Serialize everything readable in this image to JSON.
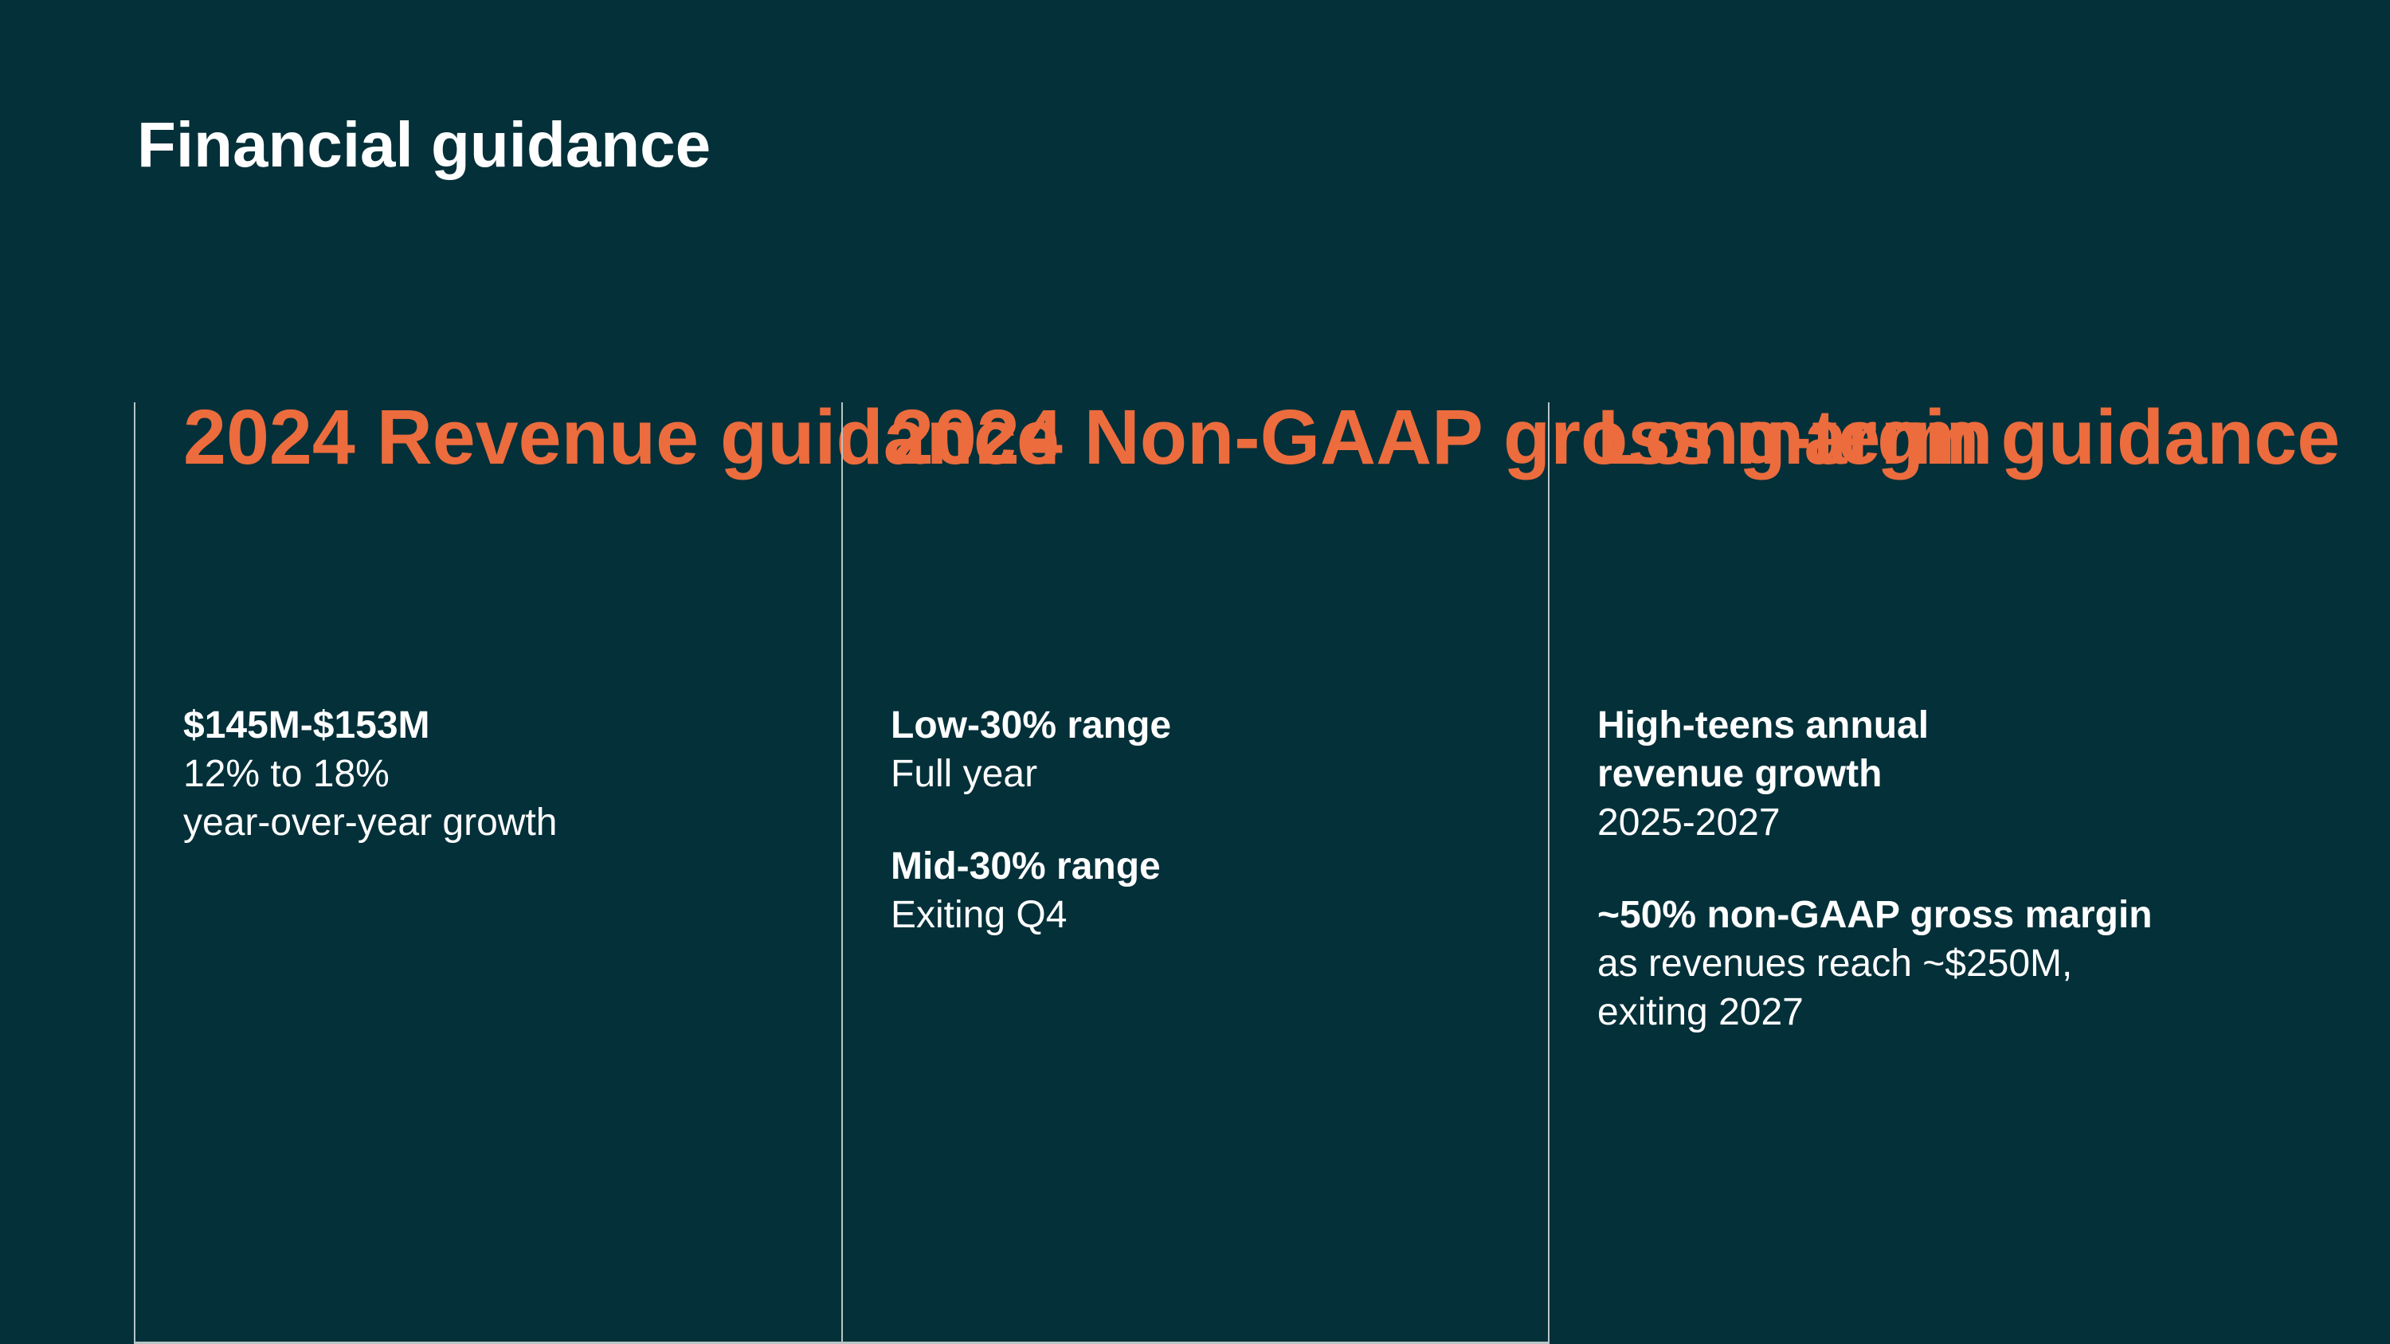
{
  "slide": {
    "title": "Financial guidance"
  },
  "colors": {
    "background": "#043039",
    "accent_orange": "#EC6C3D",
    "text_white": "#FFFFFF",
    "divider": "#B7C5C6"
  },
  "columns": [
    {
      "heading": "2024 Revenue guidance",
      "heading_lines": [
        "2024 Revenue",
        "guidance"
      ],
      "paragraphs": [
        {
          "lines": [
            {
              "text": "$145M-$153M",
              "bold": true
            },
            {
              "text": "12% to 18%",
              "bold": false
            },
            {
              "text": "year-over-year growth",
              "bold": false
            }
          ]
        }
      ]
    },
    {
      "heading": "2024 Non-GAAP gross margin",
      "heading_lines": [
        "2024 Non-GAAP",
        "gross margin"
      ],
      "paragraphs": [
        {
          "lines": [
            {
              "text": "Low-30% range",
              "bold": true
            },
            {
              "text": "Full year",
              "bold": false
            }
          ]
        },
        {
          "lines": [
            {
              "text": "Mid-30% range",
              "bold": true
            },
            {
              "text": "Exiting Q4",
              "bold": false
            }
          ]
        }
      ]
    },
    {
      "heading": "Long-term guidance",
      "heading_lines": [
        "Long-term",
        "guidance"
      ],
      "paragraphs": [
        {
          "lines": [
            {
              "text": "High-teens annual",
              "bold": true
            },
            {
              "text": "revenue growth",
              "bold": true
            },
            {
              "text": "2025-2027",
              "bold": false
            }
          ]
        },
        {
          "lines": [
            {
              "text": "~50% non-GAAP gross margin",
              "bold": true
            },
            {
              "text": "as revenues reach ~$250M,",
              "bold": false
            },
            {
              "text": "exiting 2027",
              "bold": false
            }
          ]
        }
      ]
    }
  ]
}
